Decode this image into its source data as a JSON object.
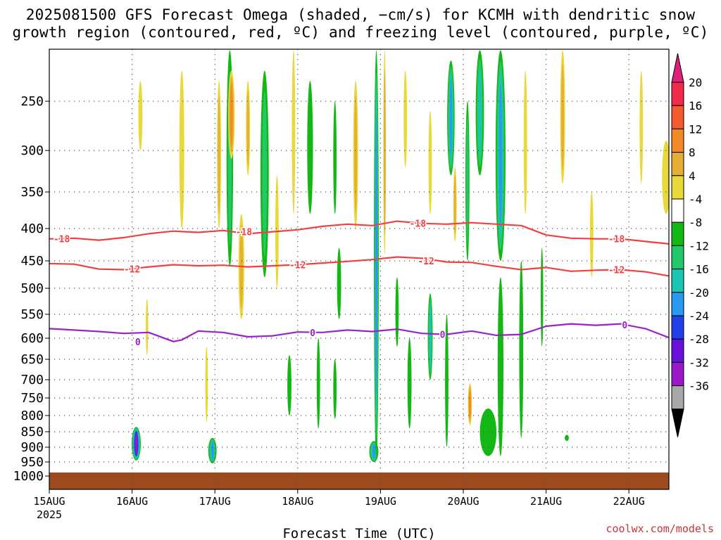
{
  "chart_data": {
    "type": "heatmap",
    "title_line1": "2025081500 GFS Forecast Omega (shaded, −cm/s) for KCMH with dendritic snow",
    "title_line2": "growth region (contoured, red, ºC) and freezing level (contoured, purple, ºC)",
    "xlabel": "Forecast Time (UTC)",
    "x_tick_labels": [
      "15AUG",
      "16AUG",
      "17AUG",
      "18AUG",
      "19AUG",
      "20AUG",
      "21AUG",
      "22AUG"
    ],
    "x_first_year": "2025",
    "y_axis": "pressure (hPa), inverted",
    "y_tick_labels": [
      250,
      300,
      350,
      400,
      450,
      500,
      550,
      600,
      650,
      700,
      750,
      800,
      850,
      900,
      950,
      1000
    ],
    "colorbar_labels": [
      20,
      16,
      12,
      8,
      4,
      -4,
      -8,
      -12,
      -16,
      -20,
      -24,
      -28,
      -32,
      -36
    ],
    "colorbar_colors": [
      "#f02b4c",
      "#f35a2e",
      "#f08a2a",
      "#e7ae35",
      "#e8d83a",
      "#ffffff",
      "#14b814",
      "#22c86a",
      "#1cc4b6",
      "#2a9af0",
      "#2040e8",
      "#6a10d8",
      "#9a18c8",
      "#a8a8a8"
    ],
    "omega_palette": {
      "o12": "#f08a2a",
      "o8": "#e7ae35",
      "o4": "#e8d83a",
      "g4": "#14b814",
      "g8": "#22c86a",
      "g12": "#1cc4b6",
      "g16": "#2a9af0",
      "g20": "#2040e8",
      "p24": "#6a10d8",
      "p28": "#9a18c8"
    },
    "ground_color": "#9c4a1e",
    "contours": [
      {
        "name": "-18",
        "color": "#f04040",
        "t": [
          0,
          0.3,
          0.6,
          0.9,
          1.2,
          1.5,
          1.8,
          2.1,
          2.4,
          2.7,
          3.0,
          3.3,
          3.6,
          3.9,
          4.2,
          4.5,
          4.8,
          5.1,
          5.4,
          5.7,
          6.0,
          6.3,
          6.6,
          6.9,
          7.2,
          7.5
        ],
        "p": [
          416,
          415,
          418,
          414,
          408,
          404,
          406,
          403,
          408,
          405,
          402,
          397,
          394,
          396,
          390,
          393,
          394,
          392,
          394,
          396,
          410,
          415,
          416,
          416,
          420,
          424
        ]
      },
      {
        "name": "-12",
        "color": "#f04040",
        "t": [
          0,
          0.3,
          0.6,
          0.9,
          1.2,
          1.5,
          1.8,
          2.1,
          2.4,
          2.7,
          3.0,
          3.3,
          3.6,
          3.9,
          4.2,
          4.5,
          4.8,
          5.1,
          5.4,
          5.7,
          6.0,
          6.3,
          6.6,
          6.9,
          7.2,
          7.5
        ],
        "p": [
          455,
          456,
          465,
          466,
          461,
          457,
          459,
          458,
          461,
          459,
          457,
          454,
          451,
          448,
          444,
          446,
          452,
          453,
          460,
          466,
          462,
          469,
          467,
          466,
          470,
          478
        ]
      },
      {
        "name": "0",
        "color": "#9a22c8",
        "t": [
          0,
          0.3,
          0.6,
          0.9,
          1.2,
          1.5,
          1.6,
          1.8,
          2.1,
          2.4,
          2.7,
          3.0,
          3.3,
          3.6,
          3.9,
          4.2,
          4.5,
          4.8,
          5.1,
          5.4,
          5.7,
          6.0,
          6.3,
          6.6,
          6.9,
          7.2,
          7.5
        ],
        "p": [
          580,
          583,
          586,
          590,
          588,
          608,
          604,
          585,
          588,
          597,
          595,
          587,
          588,
          583,
          586,
          581,
          590,
          592,
          585,
          594,
          592,
          575,
          570,
          573,
          570,
          580,
          600
        ]
      }
    ],
    "contour_labels": [
      {
        "text": "-18",
        "t": 0.15,
        "p": 416
      },
      {
        "text": "-18",
        "t": 2.35,
        "p": 405
      },
      {
        "text": "-18",
        "t": 4.45,
        "p": 393
      },
      {
        "text": "-18",
        "t": 6.85,
        "p": 416
      },
      {
        "text": "-12",
        "t": 1.0,
        "p": 465
      },
      {
        "text": "-12",
        "t": 3.0,
        "p": 457
      },
      {
        "text": "-12",
        "t": 4.55,
        "p": 450
      },
      {
        "text": "-12",
        "t": 6.85,
        "p": 466
      },
      {
        "text": "0",
        "t": 1.07,
        "p": 608
      },
      {
        "text": "0",
        "t": 3.18,
        "p": 588
      },
      {
        "text": "0",
        "t": 4.75,
        "p": 592
      },
      {
        "text": "0",
        "t": 6.95,
        "p": 572
      }
    ],
    "omega_features": [
      {
        "t": 1.05,
        "p1": 835,
        "p2": 945,
        "w": 0.11,
        "layers": [
          "g4",
          "g8",
          "g12",
          "g16",
          "g20",
          "p24",
          "p28"
        ]
      },
      {
        "t": 1.97,
        "p1": 870,
        "p2": 955,
        "w": 0.1,
        "layers": [
          "g4",
          "g8",
          "g12",
          "g16"
        ]
      },
      {
        "t": 3.92,
        "p1": 880,
        "p2": 950,
        "w": 0.11,
        "layers": [
          "g4",
          "g8",
          "g12",
          "g16"
        ]
      },
      {
        "t": 1.18,
        "p1": 520,
        "p2": 640,
        "w": 0.03,
        "layers": [
          "o4"
        ]
      },
      {
        "t": 1.1,
        "p1": 230,
        "p2": 300,
        "w": 0.05,
        "layers": [
          "o4"
        ]
      },
      {
        "t": 1.6,
        "p1": 220,
        "p2": 400,
        "w": 0.06,
        "layers": [
          "o4"
        ]
      },
      {
        "t": 1.9,
        "p1": 620,
        "p2": 820,
        "w": 0.03,
        "layers": [
          "o4"
        ]
      },
      {
        "t": 2.18,
        "p1": 200,
        "p2": 460,
        "w": 0.08,
        "layers": [
          "g4",
          "g8"
        ]
      },
      {
        "t": 2.05,
        "p1": 230,
        "p2": 400,
        "w": 0.05,
        "layers": [
          "o4",
          "o8"
        ]
      },
      {
        "t": 2.2,
        "p1": 220,
        "p2": 310,
        "w": 0.08,
        "layers": [
          "o4",
          "o8",
          "o12"
        ]
      },
      {
        "t": 2.4,
        "p1": 230,
        "p2": 330,
        "w": 0.05,
        "layers": [
          "o4",
          "o8"
        ]
      },
      {
        "t": 2.32,
        "p1": 380,
        "p2": 560,
        "w": 0.07,
        "layers": [
          "o4",
          "o8"
        ]
      },
      {
        "t": 2.6,
        "p1": 220,
        "p2": 480,
        "w": 0.1,
        "layers": [
          "g4",
          "g8"
        ]
      },
      {
        "t": 2.75,
        "p1": 330,
        "p2": 500,
        "w": 0.04,
        "layers": [
          "o4"
        ]
      },
      {
        "t": 2.95,
        "p1": 200,
        "p2": 380,
        "w": 0.04,
        "layers": [
          "o4"
        ]
      },
      {
        "t": 3.15,
        "p1": 230,
        "p2": 380,
        "w": 0.07,
        "layers": [
          "g4"
        ]
      },
      {
        "t": 3.45,
        "p1": 250,
        "p2": 380,
        "w": 0.04,
        "layers": [
          "g4"
        ]
      },
      {
        "t": 3.5,
        "p1": 430,
        "p2": 560,
        "w": 0.05,
        "layers": [
          "g4"
        ]
      },
      {
        "t": 2.9,
        "p1": 640,
        "p2": 800,
        "w": 0.05,
        "layers": [
          "g4"
        ]
      },
      {
        "t": 3.25,
        "p1": 600,
        "p2": 840,
        "w": 0.04,
        "layers": [
          "g4"
        ]
      },
      {
        "t": 3.45,
        "p1": 650,
        "p2": 810,
        "w": 0.04,
        "layers": [
          "g4"
        ]
      },
      {
        "t": 3.7,
        "p1": 230,
        "p2": 400,
        "w": 0.06,
        "layers": [
          "o4",
          "o8"
        ]
      },
      {
        "t": 3.95,
        "p1": 200,
        "p2": 940,
        "w": 0.06,
        "layers": [
          "g4",
          "g8",
          "g12",
          "g16"
        ]
      },
      {
        "t": 4.05,
        "p1": 200,
        "p2": 440,
        "w": 0.03,
        "layers": [
          "o4",
          "o8"
        ]
      },
      {
        "t": 4.2,
        "p1": 480,
        "p2": 620,
        "w": 0.04,
        "layers": [
          "g4"
        ]
      },
      {
        "t": 4.35,
        "p1": 600,
        "p2": 840,
        "w": 0.05,
        "layers": [
          "g4"
        ]
      },
      {
        "t": 4.3,
        "p1": 220,
        "p2": 320,
        "w": 0.04,
        "layers": [
          "o4"
        ]
      },
      {
        "t": 4.6,
        "p1": 510,
        "p2": 700,
        "w": 0.06,
        "layers": [
          "g4",
          "g8",
          "g12"
        ]
      },
      {
        "t": 4.8,
        "p1": 550,
        "p2": 900,
        "w": 0.04,
        "layers": [
          "g4"
        ]
      },
      {
        "t": 4.6,
        "p1": 260,
        "p2": 380,
        "w": 0.04,
        "layers": [
          "o4"
        ]
      },
      {
        "t": 4.9,
        "p1": 320,
        "p2": 420,
        "w": 0.04,
        "layers": [
          "o4",
          "o8"
        ]
      },
      {
        "t": 4.85,
        "p1": 210,
        "p2": 330,
        "w": 0.09,
        "layers": [
          "g4",
          "g8",
          "g12",
          "g16"
        ]
      },
      {
        "t": 5.05,
        "p1": 250,
        "p2": 450,
        "w": 0.05,
        "layers": [
          "g4",
          "g8"
        ]
      },
      {
        "t": 5.08,
        "p1": 710,
        "p2": 830,
        "w": 0.05,
        "layers": [
          "o4",
          "o8",
          "o12"
        ]
      },
      {
        "t": 5.2,
        "p1": 200,
        "p2": 330,
        "w": 0.1,
        "layers": [
          "g4",
          "g8",
          "g12"
        ]
      },
      {
        "t": 5.45,
        "p1": 200,
        "p2": 450,
        "w": 0.12,
        "layers": [
          "g4",
          "g8",
          "g12",
          "g16"
        ]
      },
      {
        "t": 5.45,
        "p1": 480,
        "p2": 930,
        "w": 0.07,
        "layers": [
          "g4"
        ]
      },
      {
        "t": 5.3,
        "p1": 780,
        "p2": 930,
        "w": 0.2,
        "layers": [
          "g4"
        ]
      },
      {
        "t": 5.7,
        "p1": 450,
        "p2": 870,
        "w": 0.05,
        "layers": [
          "g4"
        ]
      },
      {
        "t": 5.75,
        "p1": 220,
        "p2": 380,
        "w": 0.04,
        "layers": [
          "o4"
        ]
      },
      {
        "t": 6.2,
        "p1": 200,
        "p2": 340,
        "w": 0.06,
        "layers": [
          "o4",
          "o8"
        ]
      },
      {
        "t": 6.25,
        "p1": 860,
        "p2": 880,
        "w": 0.05,
        "layers": [
          "g4"
        ]
      },
      {
        "t": 7.15,
        "p1": 220,
        "p2": 340,
        "w": 0.04,
        "layers": [
          "o4"
        ]
      },
      {
        "t": 7.45,
        "p1": 290,
        "p2": 380,
        "w": 0.1,
        "layers": [
          "o4"
        ]
      },
      {
        "t": 6.55,
        "p1": 350,
        "p2": 480,
        "w": 0.04,
        "layers": [
          "o4"
        ]
      },
      {
        "t": 5.95,
        "p1": 430,
        "p2": 620,
        "w": 0.03,
        "layers": [
          "g4"
        ]
      }
    ]
  },
  "watermark": "coolwx.com/models"
}
